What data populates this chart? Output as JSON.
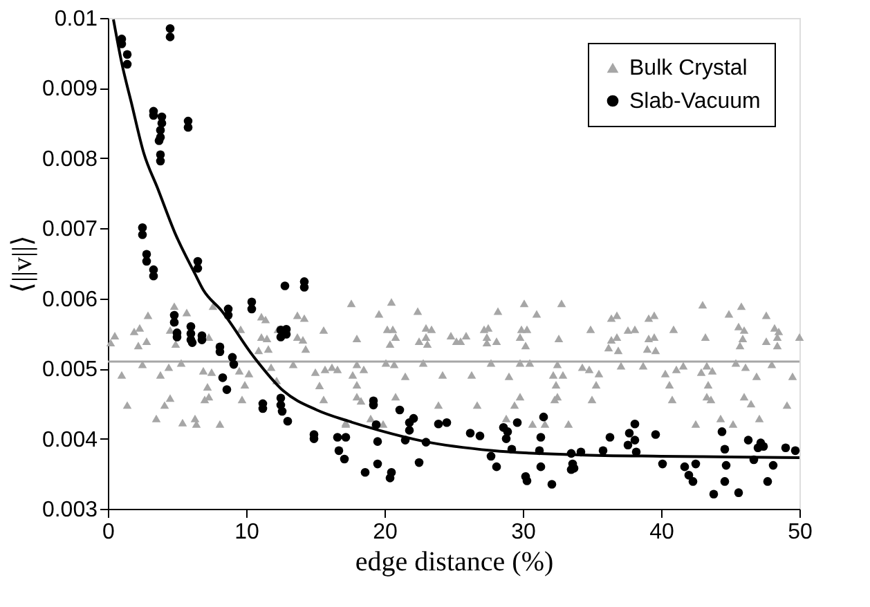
{
  "chart_data": {
    "type": "scatter",
    "xlabel": "edge distance (%)",
    "ylabel": "⟨||v||⟩",
    "xlim": [
      0,
      50
    ],
    "ylim": [
      0.003,
      0.01
    ],
    "xticks": [
      0,
      10,
      20,
      30,
      40,
      50
    ],
    "yticks": [
      0.003,
      0.004,
      0.005,
      0.006,
      0.007,
      0.008,
      0.009,
      0.01
    ],
    "grid": false,
    "legend": "top right",
    "ref_lines": [
      {
        "axis": "y",
        "value": 0.0051,
        "color": "#a6a6a6"
      }
    ],
    "series": [
      {
        "name": "Bulk Crystal",
        "marker": "triangle",
        "color": "#a6a6a6",
        "x": [
          0.5,
          0.2,
          1.0,
          1.4,
          1.9,
          2.3,
          2.2,
          2.5,
          2.8,
          2.9,
          3.5,
          3.8,
          4.1,
          4.5,
          4.4,
          4.8,
          4.5,
          4.9,
          5.3,
          5.4,
          5.7,
          6.3,
          6.4,
          6.9,
          7.3,
          7.5,
          7.2,
          7.3,
          7.0,
          8.1,
          7.6,
          9.5,
          9.6,
          9.9,
          9.7,
          10.2,
          10.9,
          11.1,
          11.4,
          11.1,
          11.5,
          11.6,
          11.8,
          12.2,
          12.3,
          13.7,
          14.2,
          13.7,
          14.1,
          14.3,
          13.4,
          15.0,
          15.3,
          15.6,
          15.6,
          15.7,
          16.2,
          17.2,
          17.6,
          18.0,
          16.6,
          18.0,
          18.5,
          17.7,
          18.0,
          18.0,
          18.3,
          17.2,
          19.0,
          19.3,
          19.9,
          19.6,
          20.5,
          20.2,
          20.6,
          20.8,
          20.4,
          20.1,
          20.7,
          20.8,
          21.5,
          22.4,
          22.5,
          23.0,
          23.4,
          23.0,
          23.1,
          22.8,
          23.9,
          24.2,
          24.8,
          25.2,
          25.5,
          25.9,
          26.3,
          26.7,
          27.2,
          27.5,
          27.4,
          27.4,
          28.1,
          27.7,
          28.2,
          29.0,
          28.8,
          29.4,
          29.8,
          29.8,
          29.9,
          30.3,
          30.2,
          30.1,
          29.8,
          30.5,
          30.7,
          31.0,
          31.6,
          32.2,
          32.4,
          32.3,
          32.5,
          32.6,
          32.8,
          32.9,
          32.5,
          33.3,
          34.3,
          34.8,
          35.5,
          35.3,
          35.0,
          34.9,
          36.2,
          36.4,
          36.8,
          36.9,
          36.4,
          36.8,
          37.1,
          37.6,
          38.1,
          38.7,
          39.0,
          39.1,
          39.5,
          39.6,
          39.1,
          39.5,
          40.9,
          40.3,
          41.1,
          41.6,
          40.6,
          40.8,
          42.5,
          43.0,
          43.2,
          42.9,
          43.3,
          43.7,
          43.4,
          43.3,
          43.6,
          44.3,
          45.2,
          44.9,
          45.4,
          45.8,
          45.6,
          46.0,
          45.9,
          45.7,
          46.1,
          46.0,
          46.5,
          46.9,
          47.1,
          47.6,
          47.6,
          48.0,
          48.2,
          48.4,
          48.5,
          48.4,
          49.1,
          49.5,
          50.0
        ],
        "values": [
          0.00547,
          0.00537,
          0.00491,
          0.00448,
          0.00553,
          0.00558,
          0.00533,
          0.00506,
          0.00539,
          0.00576,
          0.00429,
          0.00491,
          0.00448,
          0.00458,
          0.00502,
          0.00589,
          0.00555,
          0.00535,
          0.00508,
          0.00423,
          0.0058,
          0.00429,
          0.00421,
          0.00497,
          0.00545,
          0.00495,
          0.00474,
          0.0046,
          0.00456,
          0.00421,
          0.00589,
          0.00497,
          0.00556,
          0.00477,
          0.00456,
          0.00493,
          0.00526,
          0.00574,
          0.0057,
          0.00545,
          0.00543,
          0.00528,
          0.00502,
          0.00483,
          0.00556,
          0.00576,
          0.00572,
          0.00545,
          0.00541,
          0.00528,
          0.00506,
          0.00495,
          0.00476,
          0.00456,
          0.00555,
          0.00499,
          0.00502,
          0.00421,
          0.00593,
          0.00543,
          0.00499,
          0.00506,
          0.00499,
          0.00491,
          0.00477,
          0.0046,
          0.00454,
          0.00423,
          0.00429,
          0.00421,
          0.00421,
          0.00578,
          0.00595,
          0.00556,
          0.00556,
          0.00545,
          0.00535,
          0.00508,
          0.00506,
          0.0046,
          0.00489,
          0.00582,
          0.00539,
          0.00558,
          0.00556,
          0.00545,
          0.00535,
          0.00508,
          0.00448,
          0.00491,
          0.00547,
          0.00539,
          0.00539,
          0.00547,
          0.00491,
          0.00448,
          0.00556,
          0.00558,
          0.00545,
          0.00537,
          0.00539,
          0.00508,
          0.00582,
          0.00489,
          0.00429,
          0.00448,
          0.0046,
          0.00545,
          0.00556,
          0.00556,
          0.00533,
          0.00593,
          0.00508,
          0.00508,
          0.00421,
          0.00578,
          0.00421,
          0.00491,
          0.00477,
          0.00456,
          0.00506,
          0.00543,
          0.00593,
          0.00491,
          0.0046,
          0.00421,
          0.00502,
          0.00499,
          0.00493,
          0.00477,
          0.00456,
          0.00556,
          0.0053,
          0.00541,
          0.00545,
          0.00526,
          0.00572,
          0.00576,
          0.00504,
          0.00555,
          0.00556,
          0.00504,
          0.00528,
          0.00543,
          0.00545,
          0.00526,
          0.00572,
          0.00576,
          0.00556,
          0.00493,
          0.00499,
          0.00504,
          0.00477,
          0.00456,
          0.00421,
          0.00591,
          0.00545,
          0.00495,
          0.00504,
          0.00497,
          0.00477,
          0.0046,
          0.00456,
          0.00429,
          0.00421,
          0.00578,
          0.00508,
          0.00589,
          0.0056,
          0.00555,
          0.00543,
          0.00533,
          0.00502,
          0.0046,
          0.0045,
          0.00489,
          0.00429,
          0.00576,
          0.00539,
          0.00506,
          0.00558,
          0.00545,
          0.00553,
          0.00533,
          0.00448,
          0.00489,
          0.00545
        ]
      },
      {
        "name": "Slab-Vacuum",
        "marker": "circle",
        "color": "#000000",
        "x": [
          1.0,
          1.0,
          1.4,
          1.4,
          4.5,
          4.5,
          3.3,
          3.3,
          3.9,
          3.9,
          3.8,
          3.8,
          3.7,
          3.8,
          3.8,
          5.8,
          5.8,
          2.5,
          2.5,
          2.8,
          2.8,
          3.3,
          3.3,
          6.5,
          6.5,
          12.8,
          14.2,
          14.2,
          4.8,
          4.8,
          5.0,
          5.0,
          6.0,
          6.0,
          6.0,
          6.1,
          6.8,
          6.8,
          8.1,
          8.1,
          8.7,
          8.7,
          9.0,
          9.1,
          8.3,
          8.6,
          10.4,
          10.4,
          12.5,
          12.5,
          12.9,
          12.9,
          11.2,
          11.2,
          12.5,
          12.5,
          12.6,
          13.0,
          14.9,
          14.9,
          16.6,
          17.2,
          16.7,
          17.1,
          18.6,
          19.2,
          19.2,
          19.4,
          19.5,
          19.5,
          20.5,
          20.4,
          21.1,
          21.8,
          22.1,
          21.8,
          21.5,
          22.5,
          23.0,
          23.9,
          24.5,
          26.2,
          26.9,
          27.7,
          28.1,
          28.6,
          28.9,
          28.8,
          29.2,
          29.6,
          30.2,
          30.3,
          31.3,
          31.2,
          31.3,
          31.5,
          32.1,
          33.5,
          33.7,
          34.2,
          33.6,
          33.5,
          35.8,
          36.3,
          37.6,
          37.7,
          38.1,
          38.1,
          38.2,
          39.6,
          40.1,
          41.7,
          42.0,
          42.3,
          42.5,
          43.8,
          44.4,
          44.6,
          44.7,
          44.6,
          45.6,
          46.3,
          46.7,
          47.0,
          47.2,
          47.4,
          47.7,
          48.1,
          49.0,
          49.7
        ],
        "values": [
          0.0097,
          0.00963,
          0.00948,
          0.00934,
          0.00985,
          0.00973,
          0.00867,
          0.00861,
          0.00859,
          0.0085,
          0.0084,
          0.0083,
          0.00825,
          0.00805,
          0.00796,
          0.00853,
          0.00844,
          0.00701,
          0.00691,
          0.00663,
          0.00653,
          0.00641,
          0.00632,
          0.00653,
          0.00643,
          0.00618,
          0.00624,
          0.00616,
          0.00576,
          0.00566,
          0.00551,
          0.00545,
          0.0056,
          0.0055,
          0.00541,
          0.00537,
          0.00547,
          0.00541,
          0.00531,
          0.00524,
          0.00585,
          0.00576,
          0.00516,
          0.00506,
          0.00487,
          0.0047,
          0.00595,
          0.00585,
          0.00555,
          0.00545,
          0.00556,
          0.00549,
          0.0045,
          0.00443,
          0.00458,
          0.00448,
          0.00439,
          0.00425,
          0.00406,
          0.004,
          0.00402,
          0.00402,
          0.00383,
          0.00371,
          0.00352,
          0.00454,
          0.00448,
          0.0042,
          0.00396,
          0.00364,
          0.00352,
          0.00344,
          0.00441,
          0.00423,
          0.00429,
          0.00412,
          0.00398,
          0.00366,
          0.00395,
          0.00421,
          0.00423,
          0.00408,
          0.00404,
          0.00375,
          0.0036,
          0.00416,
          0.0041,
          0.004,
          0.00385,
          0.00423,
          0.00346,
          0.0034,
          0.00402,
          0.00383,
          0.0036,
          0.00431,
          0.00335,
          0.00379,
          0.00358,
          0.00381,
          0.00364,
          0.00356,
          0.00383,
          0.00402,
          0.00391,
          0.00408,
          0.00398,
          0.00421,
          0.00381,
          0.00406,
          0.00364,
          0.0036,
          0.00348,
          0.00339,
          0.00364,
          0.00321,
          0.0041,
          0.00385,
          0.00362,
          0.00339,
          0.00323,
          0.00398,
          0.0037,
          0.00387,
          0.00394,
          0.00389,
          0.00339,
          0.00362,
          0.00387,
          0.00383
        ]
      },
      {
        "type": "line",
        "line_style": "solid",
        "marker": "none",
        "color": "#000000",
        "x": [
          0.4,
          1.0,
          1.7,
          2.6,
          3.6,
          4.9,
          6.3,
          6.9,
          8.2,
          10.5,
          12.7,
          15.1,
          17.4,
          19.6,
          22.9,
          27.8,
          34.0,
          40.0,
          45.0,
          50.0
        ],
        "values": [
          0.00998,
          0.00936,
          0.00879,
          0.00807,
          0.00757,
          0.00691,
          0.00635,
          0.00612,
          0.00583,
          0.00518,
          0.00468,
          0.00441,
          0.00425,
          0.00412,
          0.00396,
          0.00383,
          0.00377,
          0.00375,
          0.00374,
          0.00373
        ]
      }
    ]
  }
}
